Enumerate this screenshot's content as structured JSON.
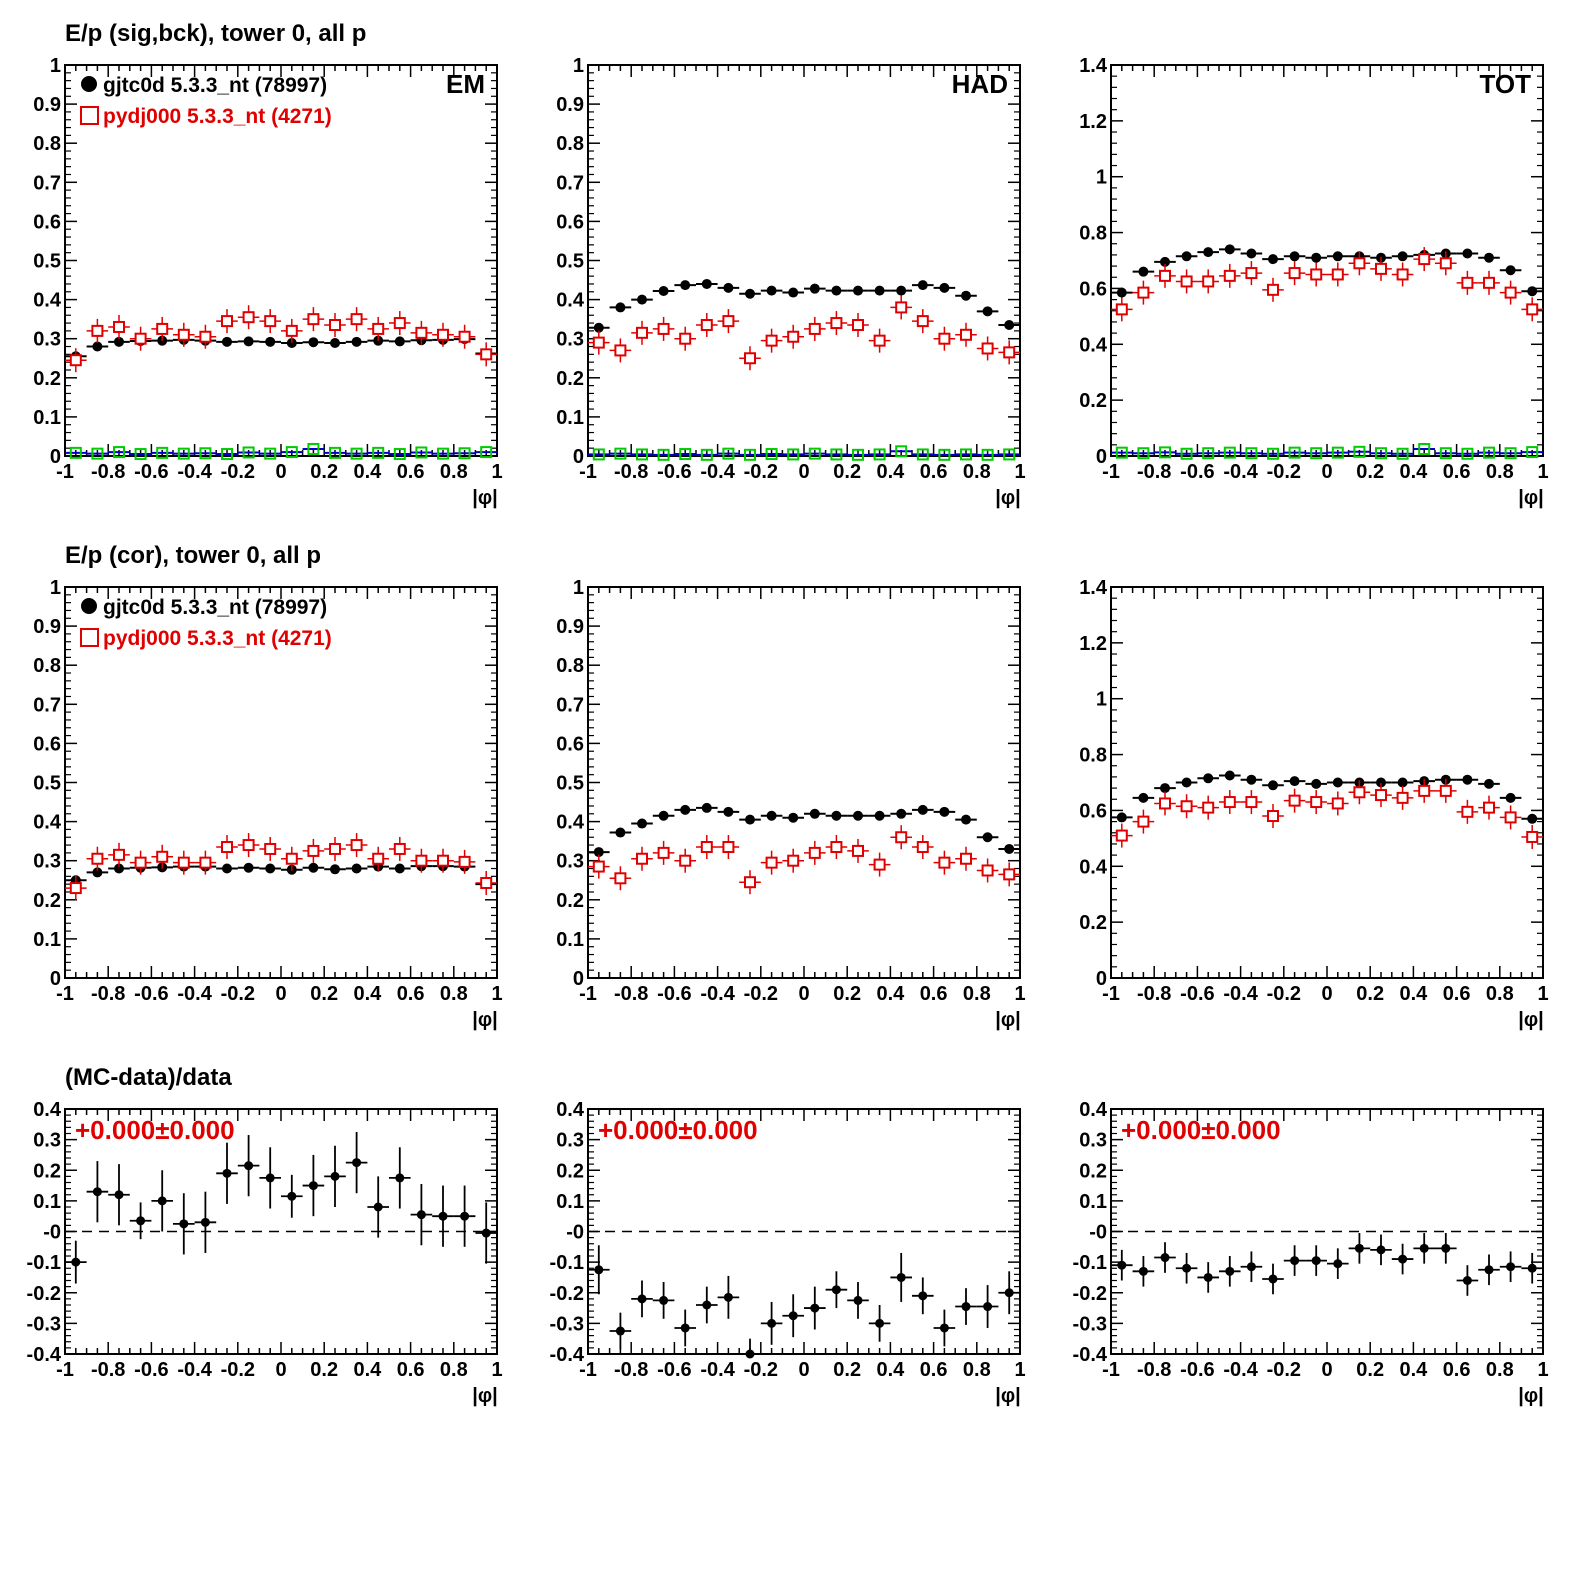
{
  "colors": {
    "data": "#000000",
    "mc": "#e00000",
    "bck": "#00cc00",
    "annot": "#e00000"
  },
  "row_titles": [
    "E/p (sig,bck), tower 0, all p",
    "E/p (cor), tower 0, all p",
    "(MC-data)/data"
  ],
  "legend": {
    "data": "gjtc0d 5.3.3_nt (78997)",
    "mc": "pydj000 5.3.3_nt (4271)"
  },
  "xlabel": "|φ|",
  "xticklabels": [
    "-1",
    "-0.8",
    "-0.6",
    "-0.4",
    "-0.2",
    "0",
    "0.2",
    "0.4",
    "0.6",
    "0.8",
    "1"
  ],
  "ratio_annotation": "+0.000±0.000",
  "chart_data": [
    {
      "type": "scatter",
      "panel_label": "EM",
      "xlim": [
        -1,
        1
      ],
      "ylim": [
        0,
        1
      ],
      "ylabel_ticks": [
        "0",
        "0.1",
        "0.2",
        "0.3",
        "0.4",
        "0.5",
        "0.6",
        "0.7",
        "0.8",
        "0.9",
        "1"
      ],
      "x": [
        -0.95,
        -0.85,
        -0.75,
        -0.65,
        -0.55,
        -0.45,
        -0.35,
        -0.25,
        -0.15,
        -0.05,
        0.05,
        0.15,
        0.25,
        0.35,
        0.45,
        0.55,
        0.65,
        0.75,
        0.85,
        0.95
      ],
      "series": [
        {
          "name": "gjtc0d 5.3.3_nt (78997)",
          "marker": "dot",
          "values": [
            0.255,
            0.28,
            0.292,
            0.294,
            0.295,
            0.297,
            0.295,
            0.292,
            0.293,
            0.292,
            0.289,
            0.291,
            0.289,
            0.292,
            0.295,
            0.293,
            0.296,
            0.297,
            0.299,
            0.262
          ]
        },
        {
          "name": "pydj000 5.3.3_nt (4271)",
          "marker": "cross",
          "values": [
            0.245,
            0.32,
            0.33,
            0.3,
            0.325,
            0.31,
            0.305,
            0.345,
            0.355,
            0.345,
            0.32,
            0.35,
            0.335,
            0.35,
            0.325,
            0.34,
            0.315,
            0.31,
            0.305,
            0.26
          ]
        },
        {
          "marker": "bck",
          "values": [
            0.008,
            0.006,
            0.01,
            0.005,
            0.008,
            0.006,
            0.007,
            0.005,
            0.009,
            0.006,
            0.01,
            0.018,
            0.008,
            0.006,
            0.008,
            0.005,
            0.009,
            0.006,
            0.007,
            0.01
          ]
        }
      ]
    },
    {
      "type": "scatter",
      "panel_label": "HAD",
      "xlim": [
        -1,
        1
      ],
      "ylim": [
        0,
        1
      ],
      "ylabel_ticks": [
        "0",
        "0.1",
        "0.2",
        "0.3",
        "0.4",
        "0.5",
        "0.6",
        "0.7",
        "0.8",
        "0.9",
        "1"
      ],
      "x": [
        -0.95,
        -0.85,
        -0.75,
        -0.65,
        -0.55,
        -0.45,
        -0.35,
        -0.25,
        -0.15,
        -0.05,
        0.05,
        0.15,
        0.25,
        0.35,
        0.45,
        0.55,
        0.65,
        0.75,
        0.85,
        0.95
      ],
      "series": [
        {
          "name": "gjtc0d 5.3.3_nt (78997)",
          "marker": "dot",
          "values": [
            0.328,
            0.38,
            0.4,
            0.422,
            0.437,
            0.44,
            0.43,
            0.415,
            0.423,
            0.418,
            0.428,
            0.423,
            0.423,
            0.423,
            0.423,
            0.437,
            0.43,
            0.41,
            0.37,
            0.335
          ]
        },
        {
          "name": "pydj000 5.3.3_nt (4271)",
          "marker": "cross",
          "values": [
            0.29,
            0.27,
            0.315,
            0.325,
            0.3,
            0.335,
            0.345,
            0.25,
            0.295,
            0.305,
            0.325,
            0.34,
            0.335,
            0.295,
            0.38,
            0.345,
            0.3,
            0.31,
            0.275,
            0.265
          ]
        },
        {
          "marker": "bck",
          "values": [
            0.004,
            0.006,
            0.004,
            0.003,
            0.005,
            0.003,
            0.006,
            0.003,
            0.005,
            0.004,
            0.006,
            0.004,
            0.003,
            0.004,
            0.012,
            0.004,
            0.003,
            0.004,
            0.003,
            0.004
          ]
        }
      ]
    },
    {
      "type": "scatter",
      "panel_label": "TOT",
      "xlim": [
        -1,
        1
      ],
      "ylim": [
        0,
        1.4
      ],
      "ylabel_ticks": [
        "0",
        "0.2",
        "0.4",
        "0.6",
        "0.8",
        "1",
        "1.2",
        "1.4"
      ],
      "x": [
        -0.95,
        -0.85,
        -0.75,
        -0.65,
        -0.55,
        -0.45,
        -0.35,
        -0.25,
        -0.15,
        -0.05,
        0.05,
        0.15,
        0.25,
        0.35,
        0.45,
        0.55,
        0.65,
        0.75,
        0.85,
        0.95
      ],
      "series": [
        {
          "name": "gjtc0d 5.3.3_nt (78997)",
          "marker": "dot",
          "values": [
            0.585,
            0.66,
            0.695,
            0.715,
            0.73,
            0.74,
            0.725,
            0.705,
            0.715,
            0.71,
            0.715,
            0.715,
            0.71,
            0.715,
            0.72,
            0.725,
            0.725,
            0.71,
            0.665,
            0.59
          ]
        },
        {
          "name": "pydj000 5.3.3_nt (4271)",
          "marker": "cross",
          "values": [
            0.525,
            0.585,
            0.645,
            0.625,
            0.625,
            0.645,
            0.655,
            0.595,
            0.655,
            0.65,
            0.65,
            0.69,
            0.67,
            0.65,
            0.705,
            0.69,
            0.62,
            0.62,
            0.585,
            0.525
          ]
        },
        {
          "marker": "bck",
          "values": [
            0.012,
            0.01,
            0.013,
            0.008,
            0.01,
            0.012,
            0.01,
            0.008,
            0.012,
            0.01,
            0.012,
            0.015,
            0.01,
            0.008,
            0.025,
            0.01,
            0.008,
            0.012,
            0.01,
            0.014
          ]
        }
      ]
    },
    {
      "type": "scatter",
      "xlim": [
        -1,
        1
      ],
      "ylim": [
        0,
        1
      ],
      "ylabel_ticks": [
        "0",
        "0.1",
        "0.2",
        "0.3",
        "0.4",
        "0.5",
        "0.6",
        "0.7",
        "0.8",
        "0.9",
        "1"
      ],
      "x": [
        -0.95,
        -0.85,
        -0.75,
        -0.65,
        -0.55,
        -0.45,
        -0.35,
        -0.25,
        -0.15,
        -0.05,
        0.05,
        0.15,
        0.25,
        0.35,
        0.45,
        0.55,
        0.65,
        0.75,
        0.85,
        0.95
      ],
      "series": [
        {
          "name": "gjtc0d 5.3.3_nt (78997)",
          "marker": "dot",
          "values": [
            0.25,
            0.27,
            0.28,
            0.282,
            0.283,
            0.285,
            0.285,
            0.28,
            0.282,
            0.28,
            0.277,
            0.282,
            0.278,
            0.28,
            0.285,
            0.28,
            0.286,
            0.286,
            0.285,
            0.24
          ]
        },
        {
          "name": "pydj000 5.3.3_nt (4271)",
          "marker": "cross",
          "values": [
            0.23,
            0.305,
            0.315,
            0.295,
            0.31,
            0.295,
            0.295,
            0.335,
            0.34,
            0.33,
            0.305,
            0.325,
            0.33,
            0.34,
            0.305,
            0.33,
            0.3,
            0.3,
            0.297,
            0.243
          ]
        }
      ]
    },
    {
      "type": "scatter",
      "xlim": [
        -1,
        1
      ],
      "ylim": [
        0,
        1
      ],
      "ylabel_ticks": [
        "0",
        "0.1",
        "0.2",
        "0.3",
        "0.4",
        "0.5",
        "0.6",
        "0.7",
        "0.8",
        "0.9",
        "1"
      ],
      "x": [
        -0.95,
        -0.85,
        -0.75,
        -0.65,
        -0.55,
        -0.45,
        -0.35,
        -0.25,
        -0.15,
        -0.05,
        0.05,
        0.15,
        0.25,
        0.35,
        0.45,
        0.55,
        0.65,
        0.75,
        0.85,
        0.95
      ],
      "series": [
        {
          "name": "gjtc0d 5.3.3_nt (78997)",
          "marker": "dot",
          "values": [
            0.322,
            0.372,
            0.395,
            0.415,
            0.43,
            0.435,
            0.425,
            0.405,
            0.415,
            0.41,
            0.42,
            0.415,
            0.415,
            0.415,
            0.42,
            0.43,
            0.425,
            0.405,
            0.36,
            0.33
          ]
        },
        {
          "name": "pydj000 5.3.3_nt (4271)",
          "marker": "cross",
          "values": [
            0.285,
            0.255,
            0.305,
            0.32,
            0.3,
            0.335,
            0.335,
            0.245,
            0.295,
            0.3,
            0.32,
            0.335,
            0.325,
            0.29,
            0.36,
            0.335,
            0.295,
            0.305,
            0.275,
            0.265
          ]
        }
      ]
    },
    {
      "type": "scatter",
      "xlim": [
        -1,
        1
      ],
      "ylim": [
        0,
        1.4
      ],
      "ylabel_ticks": [
        "0",
        "0.2",
        "0.4",
        "0.6",
        "0.8",
        "1",
        "1.2",
        "1.4"
      ],
      "x": [
        -0.95,
        -0.85,
        -0.75,
        -0.65,
        -0.55,
        -0.45,
        -0.35,
        -0.25,
        -0.15,
        -0.05,
        0.05,
        0.15,
        0.25,
        0.35,
        0.45,
        0.55,
        0.65,
        0.75,
        0.85,
        0.95
      ],
      "series": [
        {
          "name": "gjtc0d 5.3.3_nt (78997)",
          "marker": "dot",
          "values": [
            0.575,
            0.645,
            0.68,
            0.7,
            0.715,
            0.725,
            0.71,
            0.69,
            0.705,
            0.695,
            0.7,
            0.7,
            0.7,
            0.7,
            0.705,
            0.71,
            0.71,
            0.695,
            0.645,
            0.57
          ]
        },
        {
          "name": "pydj000 5.3.3_nt (4271)",
          "marker": "cross",
          "values": [
            0.51,
            0.56,
            0.625,
            0.615,
            0.61,
            0.63,
            0.63,
            0.58,
            0.635,
            0.63,
            0.625,
            0.665,
            0.655,
            0.645,
            0.67,
            0.67,
            0.595,
            0.61,
            0.575,
            0.505
          ]
        }
      ]
    },
    {
      "type": "scatter",
      "xlim": [
        -1,
        1
      ],
      "ylim": [
        -0.4,
        0.4
      ],
      "ylabel_ticks": [
        "-0.4",
        "-0.3",
        "-0.2",
        "-0.1",
        "-0",
        "0.1",
        "0.2",
        "0.3",
        "0.4"
      ],
      "x": [
        -0.95,
        -0.85,
        -0.75,
        -0.65,
        -0.55,
        -0.45,
        -0.35,
        -0.25,
        -0.15,
        -0.05,
        0.05,
        0.15,
        0.25,
        0.35,
        0.45,
        0.55,
        0.65,
        0.75,
        0.85,
        0.95
      ],
      "series": [
        {
          "marker": "ratio",
          "values": [
            -0.1,
            0.13,
            0.12,
            0.035,
            0.1,
            0.025,
            0.03,
            0.19,
            0.215,
            0.175,
            0.115,
            0.15,
            0.18,
            0.225,
            0.08,
            0.175,
            0.055,
            0.05,
            0.05,
            -0.005
          ],
          "errors": [
            0.07,
            0.1,
            0.1,
            0.06,
            0.1,
            0.1,
            0.1,
            0.1,
            0.1,
            0.1,
            0.07,
            0.1,
            0.1,
            0.1,
            0.1,
            0.1,
            0.1,
            0.1,
            0.1,
            0.1
          ]
        }
      ]
    },
    {
      "type": "scatter",
      "xlim": [
        -1,
        1
      ],
      "ylim": [
        -0.4,
        0.4
      ],
      "ylabel_ticks": [
        "-0.4",
        "-0.3",
        "-0.2",
        "-0.1",
        "-0",
        "0.1",
        "0.2",
        "0.3",
        "0.4"
      ],
      "x": [
        -0.95,
        -0.85,
        -0.75,
        -0.65,
        -0.55,
        -0.45,
        -0.35,
        -0.25,
        -0.15,
        -0.05,
        0.05,
        0.15,
        0.25,
        0.35,
        0.45,
        0.55,
        0.65,
        0.75,
        0.85,
        0.95
      ],
      "series": [
        {
          "marker": "ratio",
          "values": [
            -0.125,
            -0.325,
            -0.22,
            -0.225,
            -0.315,
            -0.24,
            -0.215,
            -0.4,
            -0.3,
            -0.275,
            -0.25,
            -0.19,
            -0.225,
            -0.3,
            -0.15,
            -0.21,
            -0.315,
            -0.245,
            -0.245,
            -0.2
          ],
          "errors": [
            0.08,
            0.06,
            0.06,
            0.06,
            0.06,
            0.06,
            0.07,
            0.05,
            0.07,
            0.07,
            0.07,
            0.06,
            0.06,
            0.06,
            0.08,
            0.06,
            0.06,
            0.06,
            0.07,
            0.07
          ]
        }
      ]
    },
    {
      "type": "scatter",
      "xlim": [
        -1,
        1
      ],
      "ylim": [
        -0.4,
        0.4
      ],
      "ylabel_ticks": [
        "-0.4",
        "-0.3",
        "-0.2",
        "-0.1",
        "-0",
        "0.1",
        "0.2",
        "0.3",
        "0.4"
      ],
      "x": [
        -0.95,
        -0.85,
        -0.75,
        -0.65,
        -0.55,
        -0.45,
        -0.35,
        -0.25,
        -0.15,
        -0.05,
        0.05,
        0.15,
        0.25,
        0.35,
        0.45,
        0.55,
        0.65,
        0.75,
        0.85,
        0.95
      ],
      "series": [
        {
          "marker": "ratio",
          "values": [
            -0.11,
            -0.13,
            -0.085,
            -0.12,
            -0.15,
            -0.13,
            -0.115,
            -0.155,
            -0.095,
            -0.095,
            -0.105,
            -0.055,
            -0.06,
            -0.09,
            -0.055,
            -0.055,
            -0.16,
            -0.125,
            -0.115,
            -0.12
          ],
          "errors": [
            0.05,
            0.05,
            0.05,
            0.05,
            0.05,
            0.05,
            0.05,
            0.05,
            0.05,
            0.05,
            0.05,
            0.05,
            0.05,
            0.05,
            0.05,
            0.05,
            0.05,
            0.05,
            0.05,
            0.05
          ]
        }
      ]
    }
  ]
}
